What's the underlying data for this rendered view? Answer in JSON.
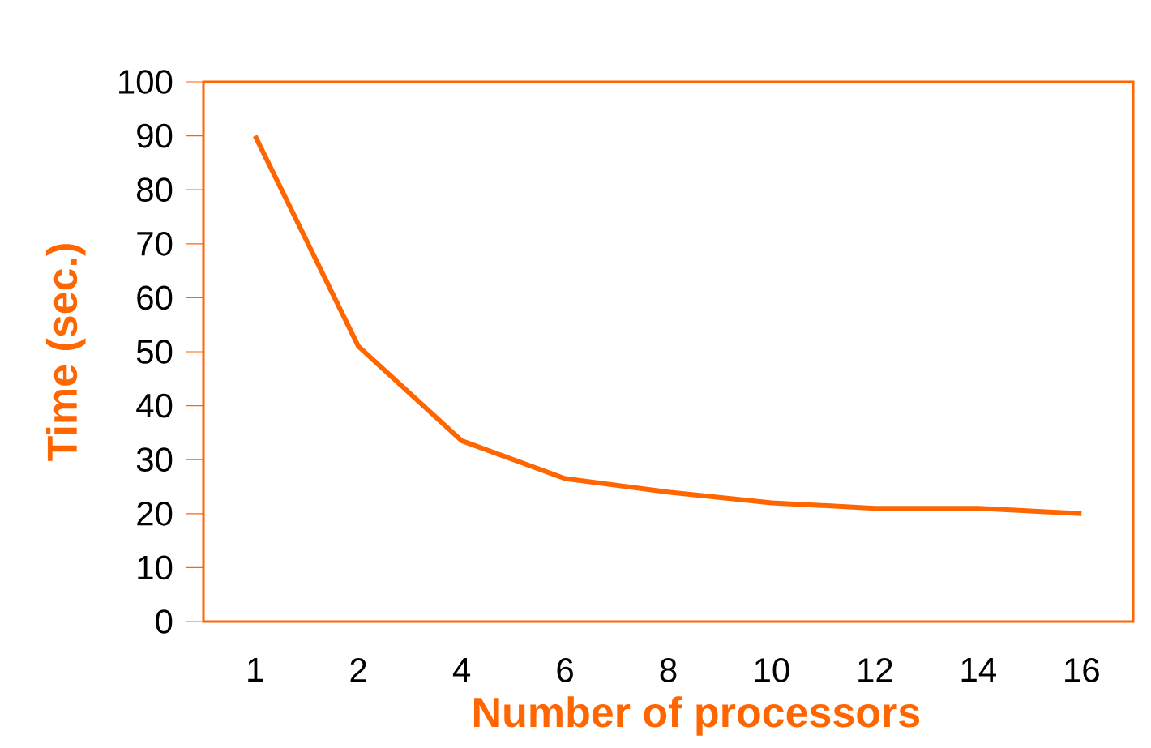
{
  "chart_data": {
    "type": "line",
    "xlabel": "Number of processors",
    "ylabel": "Time (sec.)",
    "categories": [
      "1",
      "2",
      "4",
      "6",
      "8",
      "10",
      "12",
      "14",
      "16"
    ],
    "values": [
      90,
      51,
      33.5,
      26.5,
      24,
      22,
      21,
      21,
      20
    ],
    "color": "#ff6600",
    "ylim": [
      0,
      100
    ],
    "yticks": [
      0,
      10,
      20,
      30,
      40,
      50,
      60,
      70,
      80,
      90,
      100
    ],
    "marker": "none",
    "line_style": "solid"
  }
}
